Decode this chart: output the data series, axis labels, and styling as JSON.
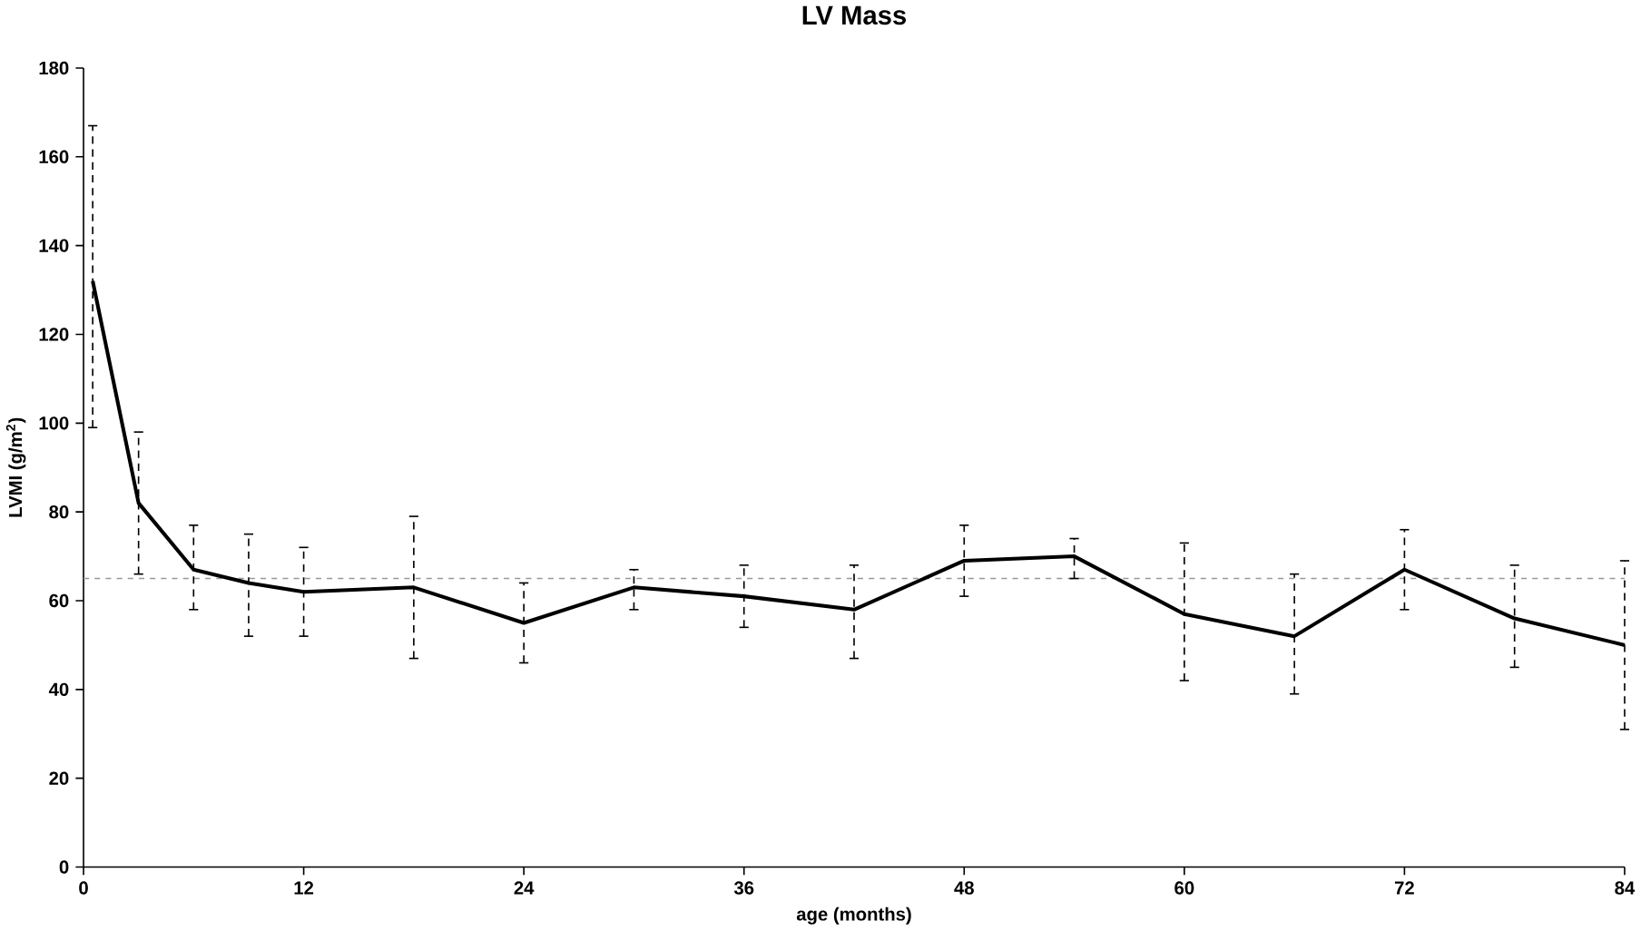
{
  "chart_data": {
    "type": "line",
    "title": "LV Mass",
    "xlabel": "age (months)",
    "ylabel": "LVMI (g/m$^{2}$)",
    "x": [
      0.5,
      3,
      6,
      9,
      12,
      18,
      24,
      30,
      36,
      42,
      48,
      54,
      60,
      66,
      72,
      78,
      84
    ],
    "series": [
      {
        "color": "#000000",
        "values": [
          132,
          82,
          67,
          64,
          62,
          63,
          55,
          63,
          61,
          58,
          69,
          70,
          57,
          52,
          67,
          56,
          50
        ],
        "errors": [
          [
            99,
            167
          ],
          [
            66,
            98
          ],
          [
            58,
            77
          ],
          [
            52,
            75
          ],
          [
            52,
            72
          ],
          [
            47,
            79
          ],
          [
            46,
            64
          ],
          [
            58,
            67
          ],
          [
            54,
            68
          ],
          [
            47,
            68
          ],
          [
            61,
            77
          ],
          [
            65,
            74
          ],
          [
            42,
            73
          ],
          [
            39,
            66
          ],
          [
            58,
            76
          ],
          [
            45,
            68
          ],
          [
            31,
            69
          ]
        ]
      }
    ],
    "xlim": [
      0,
      84
    ],
    "ylim": [
      0,
      180
    ],
    "xticks": [
      0,
      12,
      24,
      36,
      48,
      60,
      72,
      84
    ],
    "yticks": [
      0,
      20,
      40,
      60,
      80,
      100,
      120,
      140,
      160,
      180
    ],
    "ref_lines": [
      {
        "axis": "y",
        "value": 65,
        "color": "#999999",
        "line_style": "dashed"
      }
    ],
    "grid": false,
    "marker": "none",
    "line_style": "solid"
  }
}
